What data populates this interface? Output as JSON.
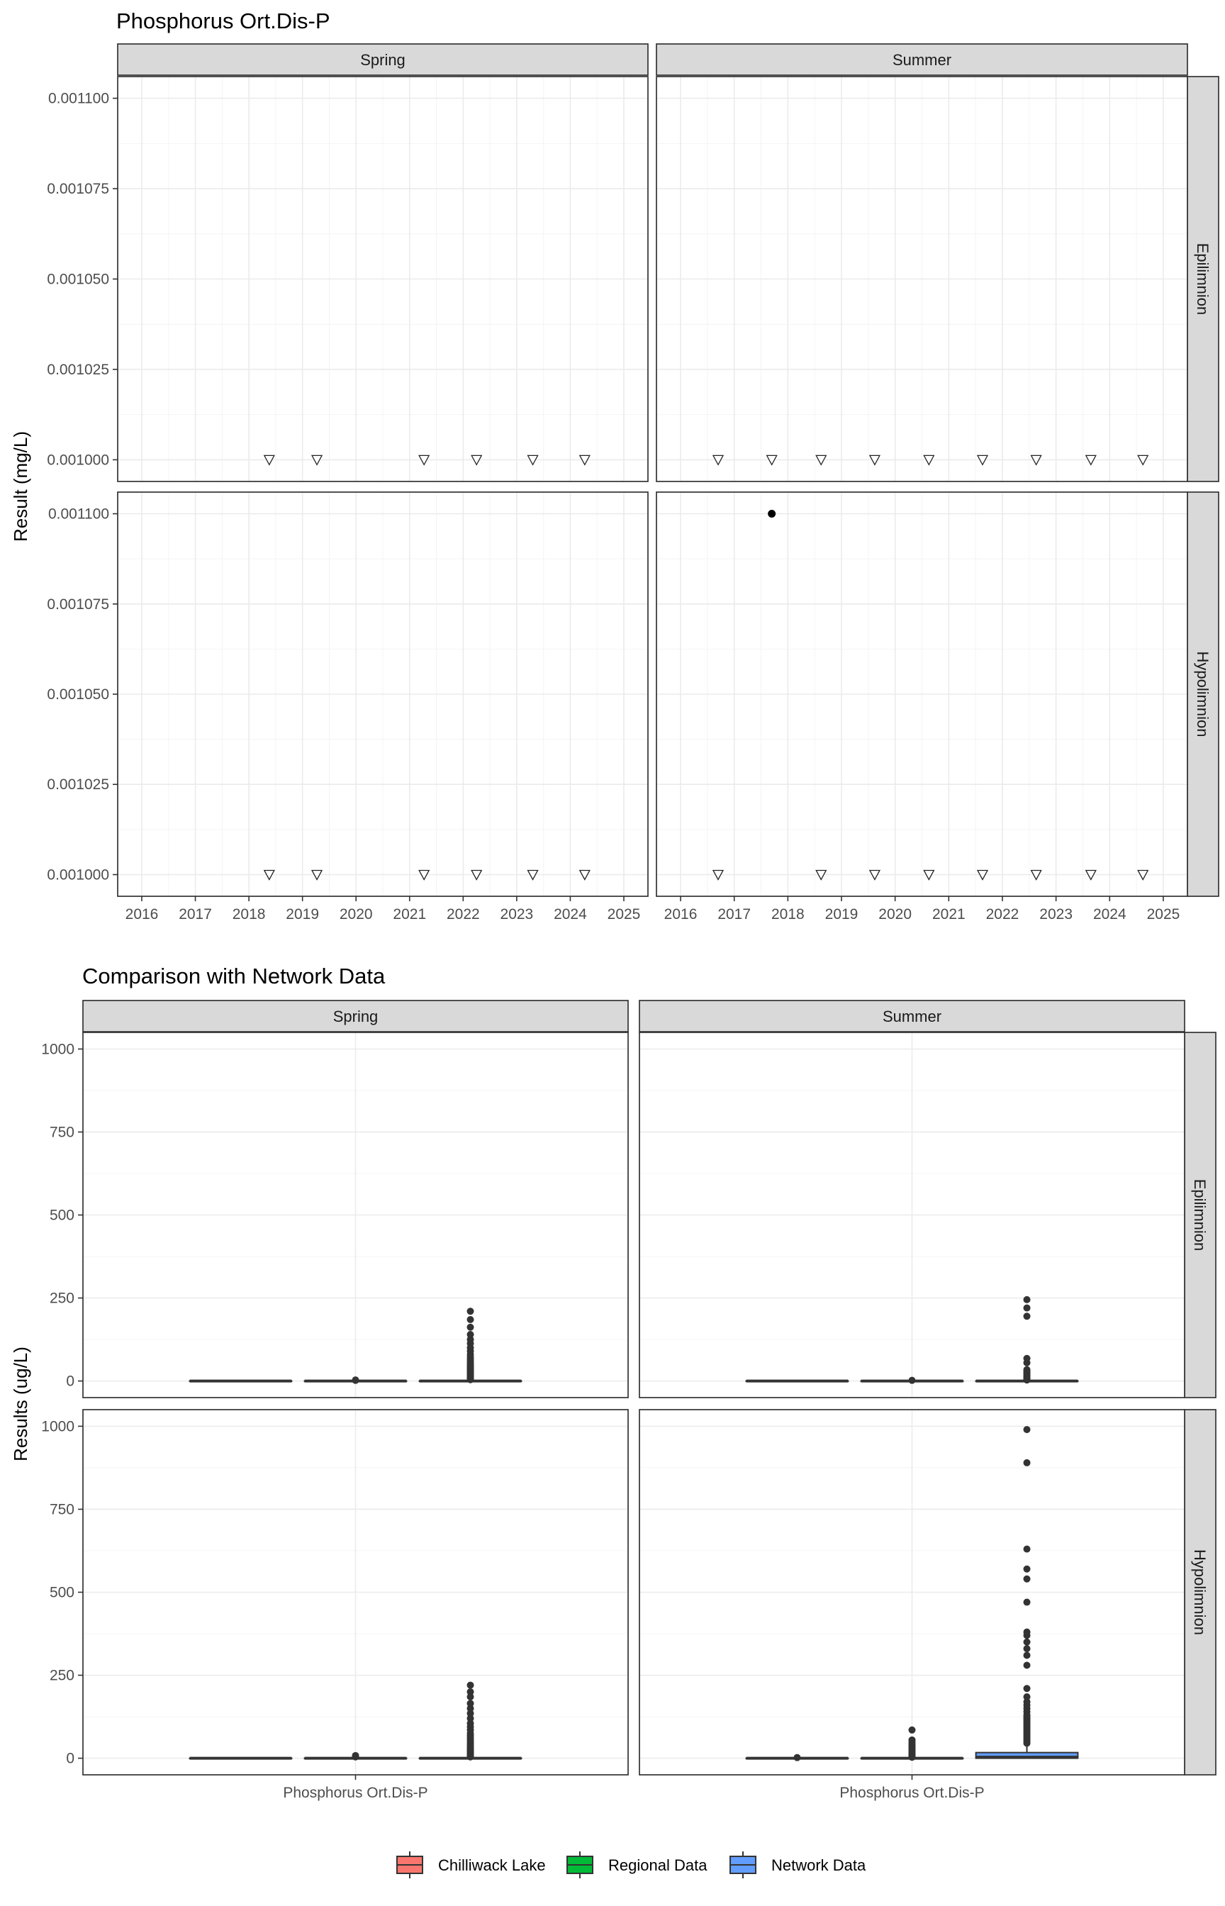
{
  "chart_data": [
    {
      "type": "scatter",
      "title": "Phosphorus Ort.Dis-P",
      "ylabel": "Result (mg/L)",
      "xlabel": "",
      "ylim": [
        0.000994,
        0.001106
      ],
      "yticks": [
        "0.001000",
        "0.001025",
        "0.001050",
        "0.001075",
        "0.001100"
      ],
      "xlim": [
        2015.55,
        2025.45
      ],
      "xticks": [
        "2016",
        "2017",
        "2018",
        "2019",
        "2020",
        "2021",
        "2022",
        "2023",
        "2024",
        "2025"
      ],
      "grid": true,
      "columns": [
        "Spring",
        "Summer"
      ],
      "rows": [
        "Epilimnion",
        "Hypolimnion"
      ],
      "point_legend": "none",
      "panels": [
        {
          "column": "Spring",
          "row": "Epilimnion",
          "below_detection": [
            2018.38,
            2019.27,
            2021.27,
            2022.25,
            2023.3,
            2024.27
          ],
          "detected": []
        },
        {
          "column": "Summer",
          "row": "Epilimnion",
          "below_detection": [
            2016.7,
            2017.7,
            2018.62,
            2019.62,
            2020.63,
            2021.63,
            2022.63,
            2023.65,
            2024.62
          ],
          "detected": []
        },
        {
          "column": "Spring",
          "row": "Hypolimnion",
          "below_detection": [
            2018.38,
            2019.27,
            2021.27,
            2022.25,
            2023.3,
            2024.27
          ],
          "detected": []
        },
        {
          "column": "Summer",
          "row": "Hypolimnion",
          "below_detection": [
            2016.7,
            2018.62,
            2019.62,
            2020.63,
            2021.63,
            2022.63,
            2023.65,
            2024.62
          ],
          "detected": [
            {
              "x": 2017.7,
              "y": 0.0011
            }
          ]
        }
      ]
    },
    {
      "type": "box",
      "title": "Comparison with Network Data",
      "ylabel": "Results (ug/L)",
      "xlabel": "",
      "category": "Phosphorus Ort.Dis-P",
      "ylim": [
        -50,
        1050
      ],
      "yticks": [
        "0",
        "250",
        "500",
        "750",
        "1000"
      ],
      "grid": true,
      "columns": [
        "Spring",
        "Summer"
      ],
      "rows": [
        "Epilimnion",
        "Hypolimnion"
      ],
      "legend": {
        "position": "bottom",
        "items": [
          {
            "label": "Chilliwack Lake",
            "color": "#f8766d"
          },
          {
            "label": "Regional Data",
            "color": "#00ba38"
          },
          {
            "label": "Network Data",
            "color": "#619cff"
          }
        ]
      },
      "panels": [
        {
          "column": "Spring",
          "row": "Epilimnion",
          "groups": [
            {
              "name": "Chilliwack Lake",
              "q1": 0,
              "median": 0,
              "q3": 0,
              "whisker_low": 0,
              "whisker_high": 0,
              "outliers": []
            },
            {
              "name": "Regional Data",
              "q1": 0,
              "median": 0,
              "q3": 0,
              "whisker_low": 0,
              "whisker_high": 0,
              "outliers": [
                2,
                3
              ]
            },
            {
              "name": "Network Data",
              "q1": 0,
              "median": 0,
              "q3": 0,
              "whisker_low": 0,
              "whisker_high": 1,
              "outliers": [
                4,
                6,
                8,
                10,
                12,
                14,
                16,
                18,
                20,
                22,
                25,
                28,
                31,
                34,
                37,
                40,
                43,
                46,
                50,
                55,
                60,
                66,
                72,
                80,
                90,
                100,
                113,
                125,
                140,
                162,
                185,
                210
              ]
            }
          ]
        },
        {
          "column": "Summer",
          "row": "Epilimnion",
          "groups": [
            {
              "name": "Chilliwack Lake",
              "q1": 0,
              "median": 0,
              "q3": 0,
              "whisker_low": 0,
              "whisker_high": 0,
              "outliers": []
            },
            {
              "name": "Regional Data",
              "q1": 0,
              "median": 0,
              "q3": 0,
              "whisker_low": 0,
              "whisker_high": 0,
              "outliers": [
                2
              ]
            },
            {
              "name": "Network Data",
              "q1": 0,
              "median": 0,
              "q3": 0,
              "whisker_low": 0,
              "whisker_high": 1,
              "outliers": [
                3,
                5,
                8,
                11,
                14,
                18,
                22,
                26,
                30,
                34,
                55,
                68,
                195,
                220,
                245
              ]
            }
          ]
        },
        {
          "column": "Spring",
          "row": "Hypolimnion",
          "groups": [
            {
              "name": "Chilliwack Lake",
              "q1": 0,
              "median": 0,
              "q3": 0,
              "whisker_low": 0,
              "whisker_high": 0,
              "outliers": []
            },
            {
              "name": "Regional Data",
              "q1": 0,
              "median": 0,
              "q3": 0,
              "whisker_low": 0,
              "whisker_high": 0,
              "outliers": [
                4,
                8
              ]
            },
            {
              "name": "Network Data",
              "q1": 0,
              "median": 0,
              "q3": 0,
              "whisker_low": 0,
              "whisker_high": 1,
              "outliers": [
                4,
                7,
                10,
                13,
                16,
                19,
                22,
                25,
                28,
                32,
                36,
                40,
                45,
                50,
                56,
                62,
                68,
                75,
                85,
                95,
                105,
                120,
                135,
                150,
                165,
                185,
                200,
                220
              ]
            }
          ]
        },
        {
          "column": "Summer",
          "row": "Hypolimnion",
          "groups": [
            {
              "name": "Chilliwack Lake",
              "q1": 0,
              "median": 0,
              "q3": 0,
              "whisker_low": 0,
              "whisker_high": 0,
              "outliers": [
                2
              ]
            },
            {
              "name": "Regional Data",
              "q1": 0,
              "median": 0,
              "q3": 0,
              "whisker_low": 0,
              "whisker_high": 0,
              "outliers": [
                3,
                6,
                9,
                12,
                16,
                20,
                24,
                28,
                32,
                36,
                40,
                45,
                50,
                55,
                85
              ]
            },
            {
              "name": "Network Data",
              "q1": 0,
              "median": 3,
              "q3": 17,
              "whisker_low": 0,
              "whisker_high": 42,
              "outliers": [
                45,
                50,
                55,
                60,
                65,
                70,
                75,
                80,
                85,
                90,
                95,
                100,
                105,
                110,
                115,
                120,
                125,
                130,
                140,
                150,
                160,
                170,
                185,
                210,
                280,
                310,
                330,
                350,
                370,
                380,
                470,
                540,
                570,
                630,
                890,
                990
              ]
            }
          ]
        }
      ]
    }
  ]
}
